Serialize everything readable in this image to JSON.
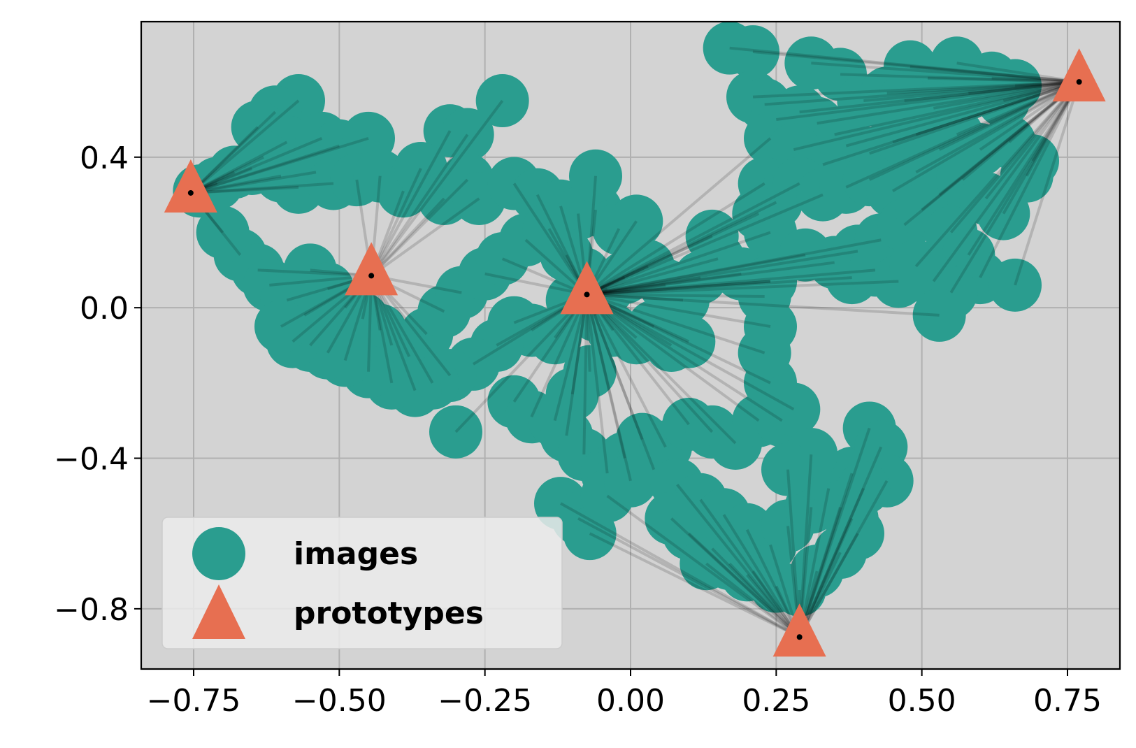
{
  "chart_data": {
    "type": "scatter",
    "title": "",
    "xlabel": "",
    "ylabel": "",
    "xlim": [
      -0.84,
      0.84
    ],
    "ylim": [
      -0.96,
      0.76
    ],
    "x_ticks": [
      -0.75,
      -0.5,
      -0.25,
      0.0,
      0.25,
      0.5,
      0.75
    ],
    "x_tick_labels": [
      "−0.75",
      "−0.50",
      "−0.25",
      "0.00",
      "0.25",
      "0.50",
      "0.75"
    ],
    "y_ticks": [
      -0.8,
      -0.4,
      0.0,
      0.4
    ],
    "y_tick_labels": [
      "−0.8",
      "−0.4",
      "0.0",
      "0.4"
    ],
    "grid": true,
    "legend_position": "bottom-left",
    "series": [
      {
        "name": "images",
        "marker": "circle",
        "color": "#2a9d8f",
        "points": [
          [
            -0.57,
            0.55
          ],
          [
            -0.61,
            0.52
          ],
          [
            -0.64,
            0.48
          ],
          [
            -0.59,
            0.44
          ],
          [
            -0.53,
            0.45
          ],
          [
            -0.5,
            0.43
          ],
          [
            -0.45,
            0.45
          ],
          [
            -0.31,
            0.47
          ],
          [
            -0.28,
            0.46
          ],
          [
            -0.22,
            0.55
          ],
          [
            -0.74,
            0.31
          ],
          [
            -0.71,
            0.33
          ],
          [
            -0.68,
            0.36
          ],
          [
            -0.65,
            0.37
          ],
          [
            -0.63,
            0.4
          ],
          [
            -0.6,
            0.35
          ],
          [
            -0.57,
            0.32
          ],
          [
            -0.54,
            0.36
          ],
          [
            -0.51,
            0.33
          ],
          [
            -0.47,
            0.34
          ],
          [
            -0.43,
            0.35
          ],
          [
            -0.39,
            0.31
          ],
          [
            -0.36,
            0.37
          ],
          [
            -0.32,
            0.29
          ],
          [
            -0.28,
            0.34
          ],
          [
            -0.26,
            0.29
          ],
          [
            -0.2,
            0.33
          ],
          [
            -0.16,
            0.3
          ],
          [
            -0.12,
            0.27
          ],
          [
            -0.09,
            0.25
          ],
          [
            -0.06,
            0.26
          ],
          [
            -0.02,
            0.21
          ],
          [
            0.01,
            0.23
          ],
          [
            -0.06,
            0.35
          ],
          [
            -0.7,
            0.2
          ],
          [
            -0.67,
            0.14
          ],
          [
            -0.64,
            0.1
          ],
          [
            -0.62,
            0.06
          ],
          [
            -0.59,
            0.02
          ],
          [
            -0.56,
            -0.02
          ],
          [
            -0.55,
            0.1
          ],
          [
            -0.52,
            0.05
          ],
          [
            -0.49,
            0.0
          ],
          [
            -0.46,
            -0.03
          ],
          [
            -0.43,
            -0.06
          ],
          [
            -0.41,
            -0.1
          ],
          [
            -0.38,
            -0.13
          ],
          [
            -0.35,
            -0.07
          ],
          [
            -0.32,
            -0.01
          ],
          [
            -0.29,
            0.04
          ],
          [
            -0.25,
            0.09
          ],
          [
            -0.22,
            0.13
          ],
          [
            -0.18,
            0.18
          ],
          [
            -0.14,
            0.21
          ],
          [
            -0.11,
            0.14
          ],
          [
            -0.08,
            0.09
          ],
          [
            -0.04,
            0.05
          ],
          [
            -0.01,
            0.08
          ],
          [
            0.03,
            0.11
          ],
          [
            0.06,
            0.06
          ],
          [
            0.09,
            0.02
          ],
          [
            0.12,
            0.08
          ],
          [
            0.15,
            0.13
          ],
          [
            0.14,
            0.19
          ],
          [
            0.19,
            0.09
          ],
          [
            0.24,
            0.07
          ],
          [
            -0.1,
            0.02
          ],
          [
            -0.06,
            -0.02
          ],
          [
            -0.03,
            -0.06
          ],
          [
            0.01,
            -0.08
          ],
          [
            0.04,
            -0.05
          ],
          [
            0.07,
            -0.1
          ],
          [
            0.1,
            -0.09
          ],
          [
            -0.13,
            -0.08
          ],
          [
            -0.17,
            -0.06
          ],
          [
            -0.2,
            -0.04
          ],
          [
            -0.23,
            -0.1
          ],
          [
            -0.27,
            -0.15
          ],
          [
            -0.31,
            -0.18
          ],
          [
            -0.34,
            -0.2
          ],
          [
            -0.37,
            -0.22
          ],
          [
            -0.41,
            -0.2
          ],
          [
            -0.45,
            -0.17
          ],
          [
            -0.49,
            -0.14
          ],
          [
            -0.52,
            -0.12
          ],
          [
            -0.55,
            -0.1
          ],
          [
            -0.58,
            -0.09
          ],
          [
            -0.6,
            -0.05
          ],
          [
            -0.3,
            -0.33
          ],
          [
            -0.2,
            -0.25
          ],
          [
            -0.17,
            -0.29
          ],
          [
            -0.13,
            -0.3
          ],
          [
            -0.1,
            -0.23
          ],
          [
            -0.07,
            -0.17
          ],
          [
            -0.11,
            -0.34
          ],
          [
            -0.08,
            -0.39
          ],
          [
            -0.04,
            -0.44
          ],
          [
            -0.01,
            -0.4
          ],
          [
            0.02,
            -0.35
          ],
          [
            0.06,
            -0.37
          ],
          [
            0.1,
            -0.31
          ],
          [
            0.14,
            -0.33
          ],
          [
            0.18,
            -0.36
          ],
          [
            0.22,
            -0.3
          ],
          [
            0.26,
            -0.3
          ],
          [
            0.28,
            -0.27
          ],
          [
            0.24,
            -0.2
          ],
          [
            0.23,
            -0.12
          ],
          [
            0.24,
            -0.05
          ],
          [
            0.23,
            0.03
          ],
          [
            0.24,
            0.07
          ],
          [
            -0.12,
            -0.52
          ],
          [
            -0.09,
            -0.56
          ],
          [
            -0.07,
            -0.6
          ],
          [
            -0.04,
            -0.5
          ],
          [
            0.0,
            -0.46
          ],
          [
            0.04,
            -0.43
          ],
          [
            0.08,
            -0.47
          ],
          [
            0.12,
            -0.51
          ],
          [
            0.16,
            -0.55
          ],
          [
            0.2,
            -0.59
          ],
          [
            0.24,
            -0.63
          ],
          [
            0.27,
            -0.58
          ],
          [
            0.31,
            -0.53
          ],
          [
            0.34,
            -0.48
          ],
          [
            0.38,
            -0.44
          ],
          [
            0.36,
            -0.53
          ],
          [
            0.39,
            -0.6
          ],
          [
            0.36,
            -0.65
          ],
          [
            0.32,
            -0.7
          ],
          [
            0.29,
            -0.75
          ],
          [
            0.25,
            -0.74
          ],
          [
            0.21,
            -0.7
          ],
          [
            0.17,
            -0.68
          ],
          [
            0.14,
            -0.64
          ],
          [
            0.1,
            -0.6
          ],
          [
            0.07,
            -0.56
          ],
          [
            0.31,
            -0.39
          ],
          [
            0.27,
            -0.43
          ],
          [
            0.41,
            -0.32
          ],
          [
            0.43,
            -0.37
          ],
          [
            0.44,
            -0.46
          ],
          [
            0.4,
            -0.48
          ],
          [
            0.38,
            -0.56
          ],
          [
            0.2,
            -0.71
          ],
          [
            0.13,
            -0.68
          ],
          [
            0.17,
            0.69
          ],
          [
            0.21,
            0.68
          ],
          [
            0.31,
            0.65
          ],
          [
            0.36,
            0.62
          ],
          [
            0.48,
            0.64
          ],
          [
            0.51,
            0.61
          ],
          [
            0.56,
            0.65
          ],
          [
            0.62,
            0.61
          ],
          [
            0.66,
            0.59
          ],
          [
            0.21,
            0.56
          ],
          [
            0.23,
            0.54
          ],
          [
            0.25,
            0.5
          ],
          [
            0.29,
            0.52
          ],
          [
            0.32,
            0.49
          ],
          [
            0.35,
            0.46
          ],
          [
            0.4,
            0.55
          ],
          [
            0.44,
            0.57
          ],
          [
            0.47,
            0.55
          ],
          [
            0.52,
            0.53
          ],
          [
            0.58,
            0.57
          ],
          [
            0.64,
            0.55
          ],
          [
            0.24,
            0.45
          ],
          [
            0.28,
            0.42
          ],
          [
            0.33,
            0.38
          ],
          [
            0.37,
            0.43
          ],
          [
            0.41,
            0.41
          ],
          [
            0.45,
            0.44
          ],
          [
            0.49,
            0.46
          ],
          [
            0.53,
            0.42
          ],
          [
            0.56,
            0.46
          ],
          [
            0.6,
            0.42
          ],
          [
            0.65,
            0.44
          ],
          [
            0.69,
            0.39
          ],
          [
            0.68,
            0.35
          ],
          [
            0.23,
            0.33
          ],
          [
            0.25,
            0.28
          ],
          [
            0.29,
            0.33
          ],
          [
            0.33,
            0.3
          ],
          [
            0.37,
            0.32
          ],
          [
            0.41,
            0.34
          ],
          [
            0.45,
            0.31
          ],
          [
            0.49,
            0.36
          ],
          [
            0.53,
            0.3
          ],
          [
            0.57,
            0.34
          ],
          [
            0.61,
            0.29
          ],
          [
            0.64,
            0.25
          ],
          [
            0.22,
            0.25
          ],
          [
            0.24,
            0.2
          ],
          [
            0.3,
            0.14
          ],
          [
            0.35,
            0.12
          ],
          [
            0.39,
            0.15
          ],
          [
            0.43,
            0.18
          ],
          [
            0.47,
            0.22
          ],
          [
            0.5,
            0.26
          ],
          [
            0.55,
            0.2
          ],
          [
            0.58,
            0.14
          ],
          [
            0.6,
            0.08
          ],
          [
            0.38,
            0.08
          ],
          [
            0.42,
            0.1
          ],
          [
            0.46,
            0.07
          ],
          [
            0.49,
            0.11
          ],
          [
            0.52,
            0.07
          ],
          [
            0.55,
            0.04
          ],
          [
            0.66,
            0.06
          ],
          [
            0.53,
            -0.02
          ]
        ]
      },
      {
        "name": "prototypes",
        "marker": "triangle",
        "color": "#e76f51",
        "points": [
          [
            -0.755,
            0.305
          ],
          [
            -0.445,
            0.085
          ],
          [
            -0.075,
            0.035
          ],
          [
            0.77,
            0.6
          ],
          [
            0.29,
            -0.875
          ]
        ]
      }
    ],
    "link_lines": {
      "description_hidden": true,
      "color": "#000000",
      "alpha": 0.15
    }
  }
}
